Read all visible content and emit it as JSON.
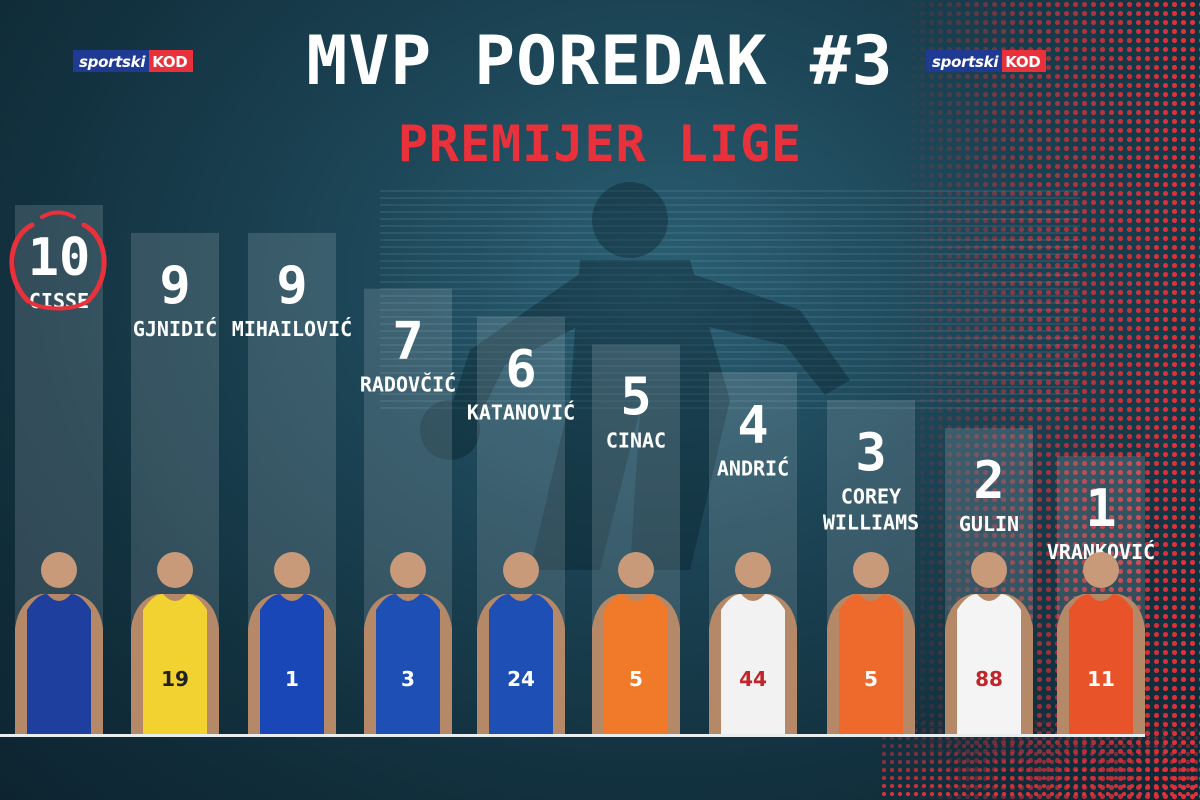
{
  "header": {
    "title": "MVP POREDAK #3",
    "subtitle": "PREMIJER LIGE",
    "logo_part1": "sportski",
    "logo_part2": "KOD"
  },
  "colors": {
    "accent": "#e8313a",
    "brand_blue": "#1f3a93",
    "bar": "#cfd8dc",
    "text": "#ffffff"
  },
  "chart_data": {
    "type": "bar",
    "title": "MVP POREDAK #3",
    "subtitle": "PREMIJER LIGE",
    "categories": [
      "CISSE",
      "GJNIDIĆ",
      "MIHAILOVIĆ",
      "RADOVČIĆ",
      "KATANOVIĆ",
      "CINAC",
      "ANDRIĆ",
      "COREY WILLIAMS",
      "GULIN",
      "VRANKOVIĆ"
    ],
    "values": [
      10,
      9,
      9,
      7,
      6,
      5,
      4,
      3,
      2,
      1
    ],
    "jersey_numbers": [
      "",
      "19",
      "1",
      "3",
      "24",
      "5",
      "44",
      "5",
      "88",
      "11"
    ],
    "jersey_colors": [
      "#1f3f9e",
      "#f2d230",
      "#1a47b8",
      "#1d4fb5",
      "#1d4fb5",
      "#f07a2a",
      "#f2f2f2",
      "#ee6a2c",
      "#f4f4f4",
      "#e8532a"
    ],
    "ylim": [
      0,
      10
    ],
    "grid": false,
    "legend": "none"
  }
}
